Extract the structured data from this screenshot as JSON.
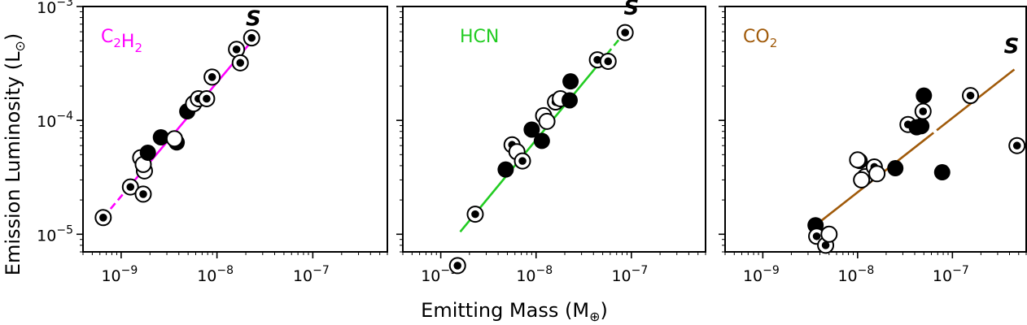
{
  "figure": {
    "xlabel": "Emitting Mass (M",
    "xlabel_sub": "⊕",
    "xlabel_close": ")",
    "ylabel": "Emission Luminosity (L",
    "ylabel_sub": "⊙",
    "ylabel_close": ")"
  },
  "chart_data": [
    {
      "type": "scatter",
      "title": "C2H2",
      "label_main": "C",
      "label_sub1": "2",
      "label_mid": "H",
      "label_sub2": "2",
      "color": "#ff00ff",
      "annotation": "S",
      "annotation_at": [
        2.4e-08,
        0.00068
      ],
      "xlim": [
        4e-10,
        6e-07
      ],
      "ylim": [
        7e-06,
        0.001
      ],
      "x_ticks": [
        "10-9",
        "10-8",
        "10-7"
      ],
      "y_ticks": [
        "10-5",
        "10-4",
        "10-3"
      ],
      "fit": {
        "x0": 6.5e-10,
        "x1": 2.6e-08,
        "y0": 1.4e-05,
        "y1": 0.00056,
        "dashed_to": 1.1e-09
      },
      "points": [
        {
          "x": 6.5e-10,
          "y": 1.4e-05,
          "m": "ring_dot"
        },
        {
          "x": 1.25e-09,
          "y": 2.6e-05,
          "m": "ring_dot"
        },
        {
          "x": 1.7e-09,
          "y": 2.25e-05,
          "m": "ring_dot"
        },
        {
          "x": 1.6e-09,
          "y": 4.7e-05,
          "m": "ring"
        },
        {
          "x": 1.75e-09,
          "y": 3.6e-05,
          "m": "ring"
        },
        {
          "x": 1.7e-09,
          "y": 4.1e-05,
          "m": "ring"
        },
        {
          "x": 1.9e-09,
          "y": 5.2e-05,
          "m": "filled"
        },
        {
          "x": 2.6e-09,
          "y": 7.1e-05,
          "m": "filled"
        },
        {
          "x": 3.8e-09,
          "y": 6.4e-05,
          "m": "filled"
        },
        {
          "x": 3.6e-09,
          "y": 6.9e-05,
          "m": "ring"
        },
        {
          "x": 4.9e-09,
          "y": 0.00012,
          "m": "filled"
        },
        {
          "x": 5.7e-09,
          "y": 0.00014,
          "m": "ring"
        },
        {
          "x": 6.4e-09,
          "y": 0.000155,
          "m": "ring_dot"
        },
        {
          "x": 7.8e-09,
          "y": 0.000155,
          "m": "ring_dot"
        },
        {
          "x": 8.9e-09,
          "y": 0.00024,
          "m": "ring_dot"
        },
        {
          "x": 1.6e-08,
          "y": 0.00042,
          "m": "ring_dot"
        },
        {
          "x": 1.75e-08,
          "y": 0.00032,
          "m": "ring_dot"
        },
        {
          "x": 2.3e-08,
          "y": 0.00053,
          "m": "ring_dot"
        }
      ]
    },
    {
      "type": "scatter",
      "title": "HCN",
      "label_main": "HCN",
      "color": "#22cc22",
      "annotation": "S",
      "annotation_at": [
        1e-07,
        0.00085
      ],
      "xlim": [
        4e-10,
        6e-07
      ],
      "ylim": [
        7e-06,
        0.001
      ],
      "x_ticks": [
        "10-9",
        "10-8",
        "10-7"
      ],
      "y_ticks": [],
      "fit": {
        "x0": 1.6e-09,
        "x1": 9.5e-08,
        "y0": 1.05e-05,
        "y1": 0.00066,
        "dashed_from": 5.5e-08
      },
      "points": [
        {
          "x": 1.5e-09,
          "y": 5.3e-06,
          "m": "ring_dot"
        },
        {
          "x": 2.3e-09,
          "y": 1.5e-05,
          "m": "ring_dot"
        },
        {
          "x": 4.8e-09,
          "y": 3.7e-05,
          "m": "filled"
        },
        {
          "x": 5.6e-09,
          "y": 6.1e-05,
          "m": "ring_dot"
        },
        {
          "x": 6.3e-09,
          "y": 5.3e-05,
          "m": "ring"
        },
        {
          "x": 7.2e-09,
          "y": 4.4e-05,
          "m": "ring_dot"
        },
        {
          "x": 9e-09,
          "y": 8.3e-05,
          "m": "filled"
        },
        {
          "x": 1.15e-08,
          "y": 6.6e-05,
          "m": "filled"
        },
        {
          "x": 1.2e-08,
          "y": 0.00011,
          "m": "ring"
        },
        {
          "x": 1.3e-08,
          "y": 9.8e-05,
          "m": "ring"
        },
        {
          "x": 1.6e-08,
          "y": 0.000145,
          "m": "ring_dot"
        },
        {
          "x": 1.8e-08,
          "y": 0.000155,
          "m": "ring"
        },
        {
          "x": 2.3e-08,
          "y": 0.00022,
          "m": "filled"
        },
        {
          "x": 2.25e-08,
          "y": 0.00015,
          "m": "filled"
        },
        {
          "x": 4.4e-08,
          "y": 0.00034,
          "m": "ring_dot"
        },
        {
          "x": 5.7e-08,
          "y": 0.00033,
          "m": "ring_dot"
        },
        {
          "x": 8.6e-08,
          "y": 0.00059,
          "m": "ring_dot"
        }
      ]
    },
    {
      "type": "scatter",
      "title": "CO2",
      "label_main": "CO",
      "label_sub1": "2",
      "color": "#a05a0a",
      "annotation": "S",
      "annotation_at": [
        4.2e-07,
        0.00039
      ],
      "xlim": [
        4e-10,
        6e-07
      ],
      "ylim": [
        7e-06,
        0.001
      ],
      "x_ticks": [
        "10-9",
        "10-8",
        "10-7"
      ],
      "y_ticks": [],
      "fit": {
        "x0": 3.6e-09,
        "x1": 4.5e-07,
        "y0": 1.2e-05,
        "y1": 0.00028,
        "dashed_from": 5.5e-08,
        "dashed_to": 7.5e-08
      },
      "points": [
        {
          "x": 3.6e-09,
          "y": 1.2e-05,
          "m": "filled"
        },
        {
          "x": 3.7e-09,
          "y": 9.6e-06,
          "m": "ring_dot"
        },
        {
          "x": 4.6e-09,
          "y": 8e-06,
          "m": "ring_dot"
        },
        {
          "x": 5e-09,
          "y": 1e-05,
          "m": "ring"
        },
        {
          "x": 1.05e-08,
          "y": 4.4e-05,
          "m": "filled"
        },
        {
          "x": 1e-08,
          "y": 4.5e-05,
          "m": "ring"
        },
        {
          "x": 1.2e-08,
          "y": 3.2e-05,
          "m": "ring"
        },
        {
          "x": 1.1e-08,
          "y": 3e-05,
          "m": "ring"
        },
        {
          "x": 1.5e-08,
          "y": 3.9e-05,
          "m": "ring_dot"
        },
        {
          "x": 1.6e-08,
          "y": 3.4e-05,
          "m": "ring"
        },
        {
          "x": 2.5e-08,
          "y": 3.8e-05,
          "m": "filled"
        },
        {
          "x": 3.4e-08,
          "y": 9.2e-05,
          "m": "ring_dot"
        },
        {
          "x": 4.2e-08,
          "y": 8.7e-05,
          "m": "filled"
        },
        {
          "x": 4.7e-08,
          "y": 8.9e-05,
          "m": "filled"
        },
        {
          "x": 4.9e-08,
          "y": 0.00012,
          "m": "ring_dot"
        },
        {
          "x": 5e-08,
          "y": 0.000165,
          "m": "filled"
        },
        {
          "x": 7.8e-08,
          "y": 3.5e-05,
          "m": "filled"
        },
        {
          "x": 1.55e-07,
          "y": 0.000165,
          "m": "ring_dot"
        },
        {
          "x": 4.8e-07,
          "y": 6e-05,
          "m": "ring_dot"
        }
      ]
    }
  ]
}
